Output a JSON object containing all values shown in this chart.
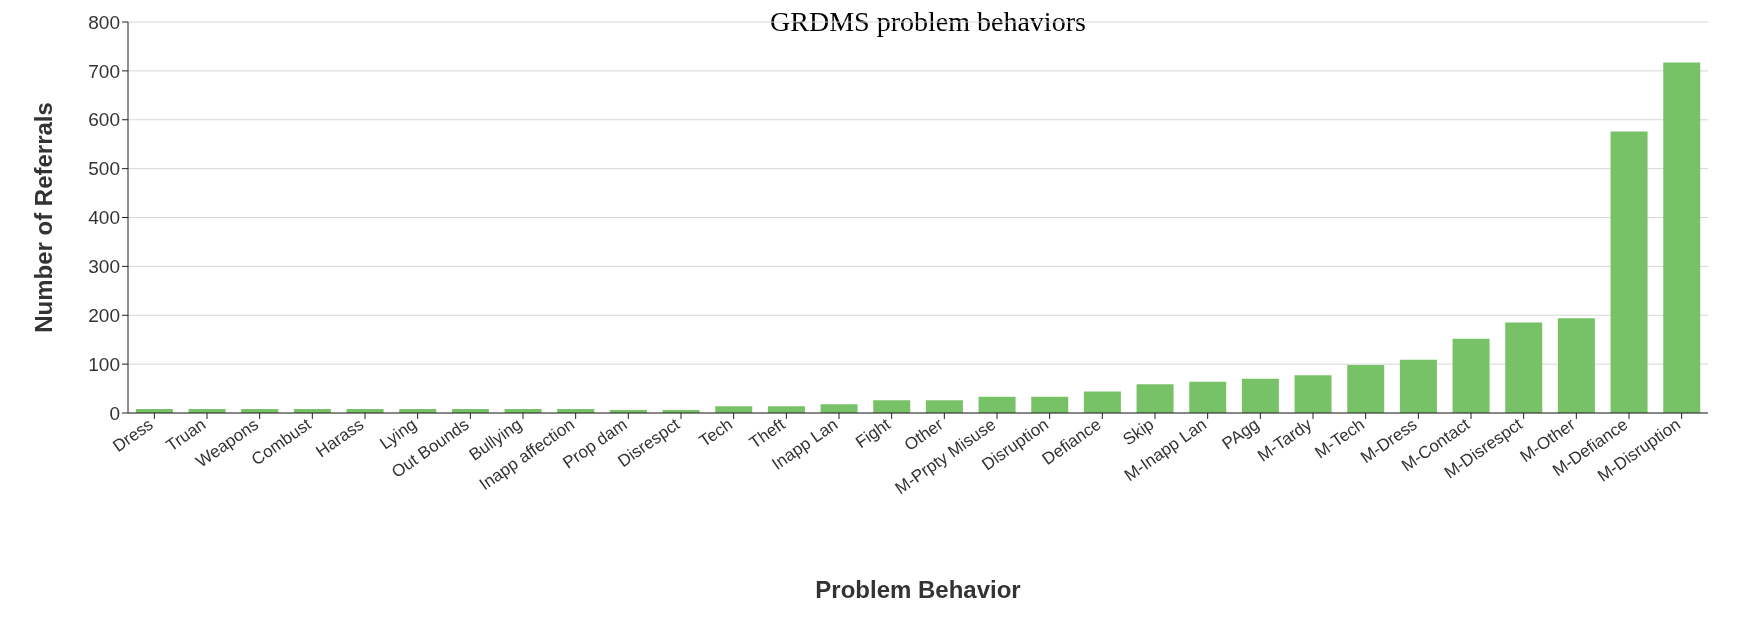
{
  "chart_data": {
    "type": "bar",
    "title": "GRDMS problem behaviors",
    "xlabel": "Problem Behavior",
    "ylabel": "Number of Referrals",
    "categories": [
      "Dress",
      "Truan",
      "Weapons",
      "Combust",
      "Harass",
      "Lying",
      "Out Bounds",
      "Bullying",
      "Inapp affection",
      "Prop dam",
      "Disrespct",
      "Tech",
      "Theft",
      "Inapp Lan",
      "Fight",
      "Other",
      "M-Prpty Misuse",
      "Disruption",
      "Defiance",
      "Skip",
      "M-Inapp Lan",
      "PAgg",
      "M-Tardy",
      "M-Tech",
      "M-Dress",
      "M-Contact",
      "M-Disrespct",
      "M-Other",
      "M-Defiance",
      "M-Disruption"
    ],
    "values": [
      8,
      8,
      8,
      8,
      8,
      8,
      8,
      8,
      8,
      6,
      6,
      14,
      14,
      18,
      26,
      26,
      33,
      33,
      44,
      59,
      64,
      70,
      77,
      98,
      109,
      152,
      185,
      194,
      576,
      717
    ],
    "color": "#77c266",
    "ylim": [
      0,
      800
    ],
    "yticks": [
      0,
      100,
      200,
      300,
      400,
      500,
      600,
      700,
      800
    ],
    "grid": "y"
  }
}
